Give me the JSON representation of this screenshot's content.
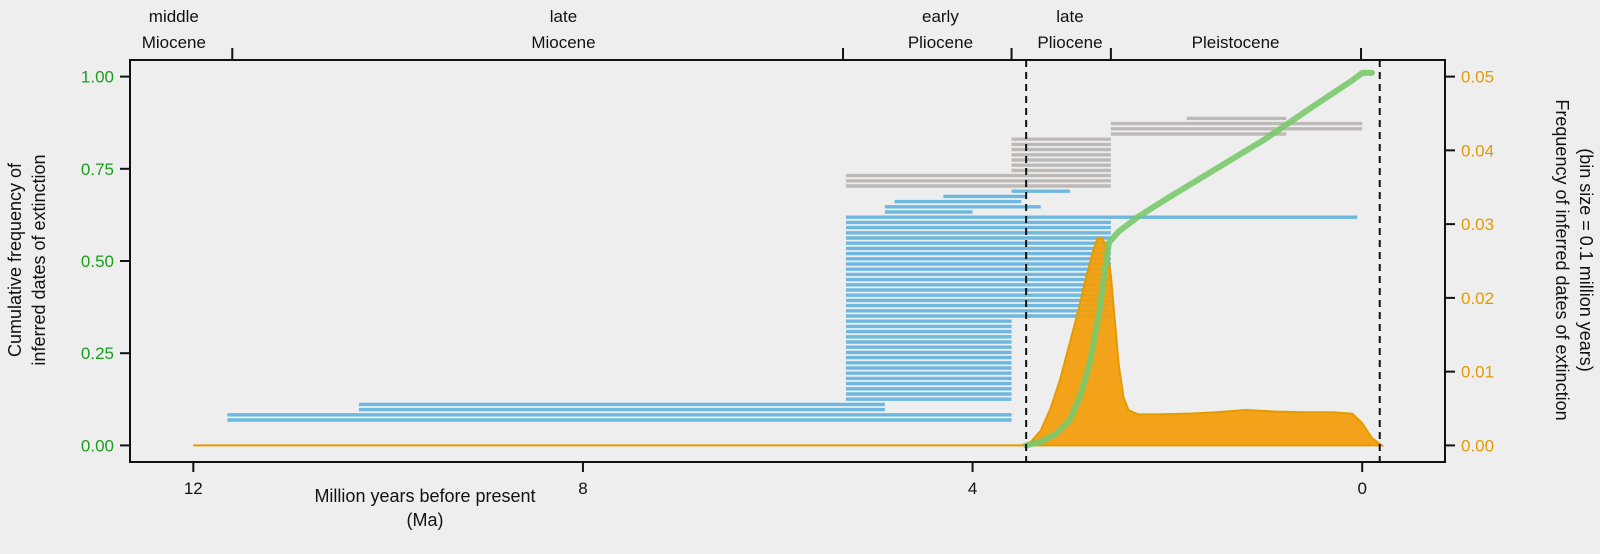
{
  "chart_data": {
    "type": "line",
    "xlabel": "Million years before present",
    "xlabel_units": "(Ma)",
    "x_range": [
      12.65,
      -0.85
    ],
    "x_ticks": [
      {
        "value": 12,
        "label": "12"
      },
      {
        "value": 8,
        "label": "8"
      },
      {
        "value": 4,
        "label": "4"
      },
      {
        "value": 0,
        "label": "0"
      }
    ],
    "y_left": {
      "label_line1": "Cumulative frequency of",
      "label_line2": "inferred dates of extinction",
      "range": [
        -0.045,
        1.045
      ],
      "ticks": [
        {
          "value": 0.0,
          "label": "0.00"
        },
        {
          "value": 0.25,
          "label": "0.25"
        },
        {
          "value": 0.5,
          "label": "0.50"
        },
        {
          "value": 0.75,
          "label": "0.75"
        },
        {
          "value": 1.0,
          "label": "1.00"
        }
      ],
      "color": "#1a9e1a"
    },
    "y_right": {
      "label_line1": "Frequency of inferred dates of extinction",
      "label_line2": "(bin size = 0.1 million years)",
      "range": [
        -0.00225,
        0.05225
      ],
      "ticks": [
        {
          "value": 0.0,
          "label": "0.00"
        },
        {
          "value": 0.01,
          "label": "0.01"
        },
        {
          "value": 0.02,
          "label": "0.02"
        },
        {
          "value": 0.03,
          "label": "0.03"
        },
        {
          "value": 0.04,
          "label": "0.04"
        },
        {
          "value": 0.05,
          "label": "0.05"
        }
      ],
      "color": "#e39b00"
    },
    "epochs": [
      {
        "name1": "middle",
        "name2": "Miocene",
        "center": 12.2
      },
      {
        "name1": "late",
        "name2": "Miocene",
        "center": 8.2
      },
      {
        "name1": "early",
        "name2": "Pliocene",
        "center": 4.33
      },
      {
        "name1": "late",
        "name2": "Pliocene",
        "center": 3.0
      },
      {
        "name1": "Pleistocene",
        "name2": "",
        "center": 1.3
      }
    ],
    "epoch_boundaries": [
      11.6,
      5.33,
      3.6,
      2.58,
      0.012
    ],
    "reference_lines": [
      3.45,
      -0.18
    ],
    "series": [
      {
        "name": "Cumulative frequency of inferred dates of extinction",
        "color": "#7ac96b",
        "axis": "left",
        "x": [
          3.45,
          3.3,
          3.15,
          3.0,
          2.9,
          2.8,
          2.7,
          2.65,
          2.6,
          2.5,
          2.3,
          2.0,
          1.5,
          1.0,
          0.5,
          0.1,
          0.0,
          -0.1
        ],
        "y": [
          0.0,
          0.01,
          0.03,
          0.07,
          0.13,
          0.22,
          0.36,
          0.46,
          0.55,
          0.58,
          0.62,
          0.67,
          0.75,
          0.83,
          0.92,
          0.99,
          1.01,
          1.01
        ]
      },
      {
        "name": "Frequency of inferred dates of extinction",
        "color": "#f29e0e",
        "axis": "right",
        "type": "area",
        "x": [
          12.0,
          3.5,
          3.4,
          3.3,
          3.2,
          3.1,
          3.0,
          2.9,
          2.85,
          2.8,
          2.76,
          2.72,
          2.68,
          2.62,
          2.58,
          2.54,
          2.5,
          2.45,
          2.4,
          2.3,
          2.1,
          1.8,
          1.5,
          1.2,
          0.9,
          0.6,
          0.3,
          0.1,
          0.0,
          -0.1,
          -0.2
        ],
        "y": [
          0.0,
          0.0,
          0.0005,
          0.002,
          0.005,
          0.009,
          0.014,
          0.019,
          0.022,
          0.0245,
          0.0265,
          0.028,
          0.0282,
          0.027,
          0.023,
          0.017,
          0.011,
          0.0065,
          0.0048,
          0.0042,
          0.0042,
          0.0043,
          0.0045,
          0.0048,
          0.0046,
          0.0045,
          0.0045,
          0.0043,
          0.003,
          0.001,
          0.0
        ]
      }
    ],
    "ranges": [
      {
        "group": "blue",
        "items": [
          [
            11.65,
            3.6
          ],
          [
            11.65,
            3.6
          ],
          [
            10.3,
            4.9
          ],
          [
            10.3,
            4.9
          ],
          [
            5.3,
            3.6
          ],
          [
            5.3,
            3.6
          ],
          [
            5.3,
            3.6
          ],
          [
            5.3,
            3.6
          ],
          [
            5.3,
            3.6
          ],
          [
            5.3,
            3.6
          ],
          [
            5.3,
            3.6
          ],
          [
            5.3,
            3.6
          ],
          [
            5.3,
            3.6
          ],
          [
            5.3,
            3.6
          ],
          [
            5.3,
            3.6
          ],
          [
            5.3,
            3.6
          ],
          [
            5.3,
            3.6
          ],
          [
            5.3,
            3.6
          ],
          [
            5.3,
            3.6
          ],
          [
            5.3,
            3.6
          ],
          [
            5.3,
            2.58
          ],
          [
            5.3,
            2.58
          ],
          [
            5.3,
            2.58
          ],
          [
            5.3,
            2.58
          ],
          [
            5.3,
            2.58
          ],
          [
            5.3,
            2.58
          ],
          [
            5.3,
            2.58
          ],
          [
            5.3,
            2.58
          ],
          [
            5.3,
            2.58
          ],
          [
            5.3,
            2.58
          ],
          [
            5.3,
            2.58
          ],
          [
            5.3,
            2.58
          ],
          [
            5.3,
            2.58
          ],
          [
            5.3,
            2.58
          ],
          [
            5.3,
            2.58
          ],
          [
            5.3,
            2.58
          ],
          [
            5.3,
            2.58
          ],
          [
            5.3,
            2.58
          ],
          [
            5.3,
            2.58
          ],
          [
            5.3,
            0.05
          ],
          [
            4.9,
            4.0
          ],
          [
            4.9,
            3.3
          ],
          [
            4.8,
            3.5
          ],
          [
            4.3,
            3.45
          ],
          [
            3.6,
            3.0
          ]
        ]
      },
      {
        "group": "gray",
        "items": [
          [
            5.3,
            2.58
          ],
          [
            5.3,
            2.58
          ],
          [
            5.3,
            2.58
          ],
          [
            3.6,
            2.58
          ],
          [
            3.6,
            2.58
          ],
          [
            3.6,
            2.58
          ],
          [
            3.6,
            2.58
          ],
          [
            3.6,
            2.58
          ],
          [
            3.6,
            2.58
          ],
          [
            3.6,
            2.58
          ],
          [
            2.58,
            0.78
          ],
          [
            2.58,
            0.0
          ],
          [
            2.58,
            0.0
          ],
          [
            1.8,
            0.78
          ]
        ]
      }
    ]
  }
}
